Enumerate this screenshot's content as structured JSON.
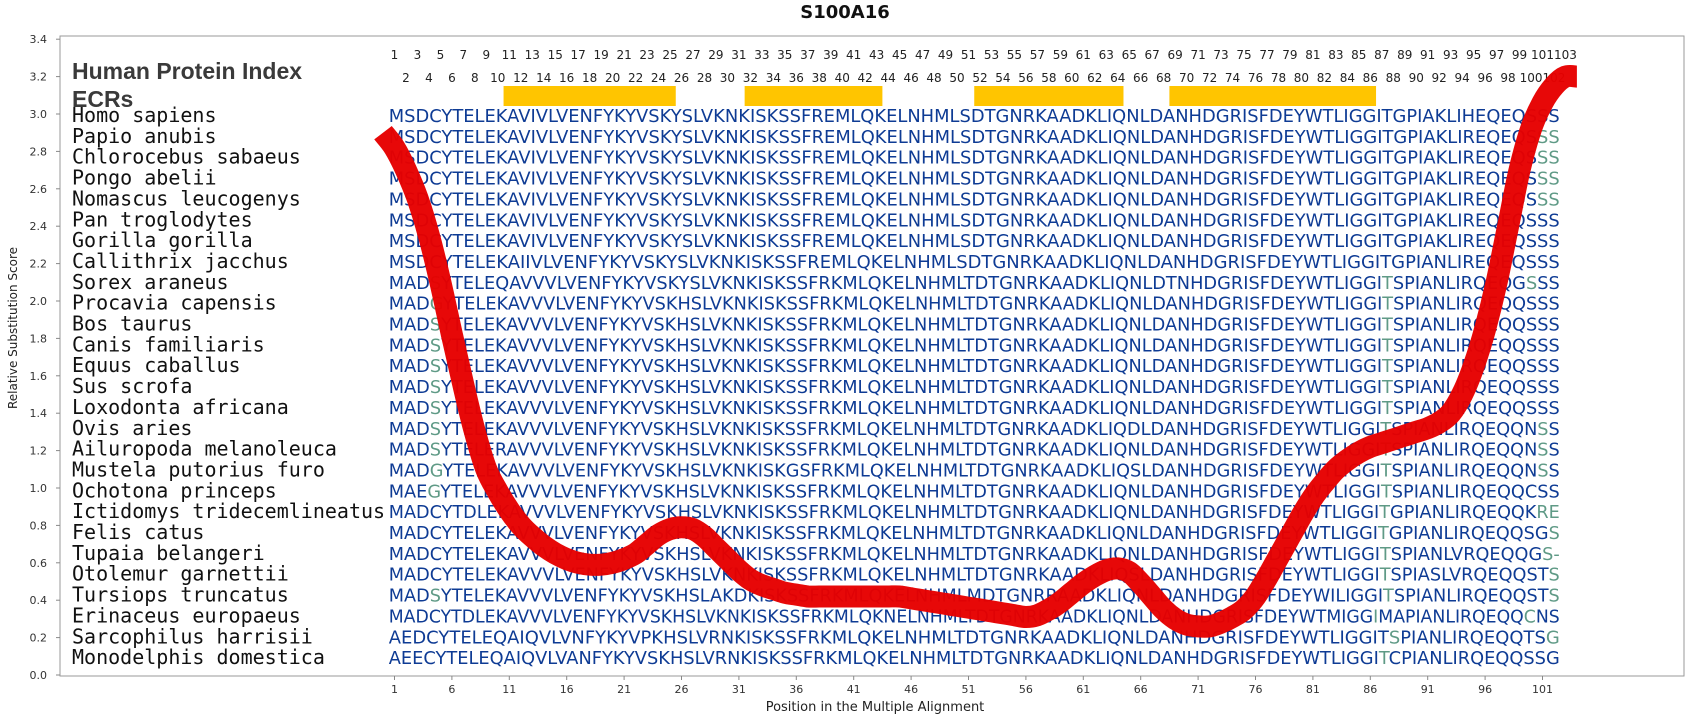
{
  "title": "S100A16",
  "header_label": "Human Protein Index",
  "ecr_label": "ECRs",
  "colors": {
    "conserved": "#0e3b94",
    "variant": "#5f9a86",
    "ecr_bar": "#ffc500",
    "curve": "#e60000",
    "frame": "#9a9a9a"
  },
  "chart_data": {
    "type": "line",
    "title": "S100A16",
    "xlabel": "Position in the Multiple Alignment",
    "ylabel": "Relative Substitution Score",
    "ylim": [
      0.0,
      3.4
    ],
    "yticks": [
      "0.0",
      "0.2",
      "0.4",
      "0.6",
      "0.8",
      "1.0",
      "1.2",
      "1.4",
      "1.6",
      "1.8",
      "2.0",
      "2.2",
      "2.4",
      "2.6",
      "2.8",
      "3.0",
      "3.2",
      "3.4"
    ],
    "xticks": [
      "1",
      "6",
      "11",
      "16",
      "21",
      "26",
      "31",
      "36",
      "41",
      "46",
      "51",
      "56",
      "61",
      "66",
      "71",
      "76",
      "81",
      "86",
      "91",
      "96",
      "101"
    ],
    "index_odd": [
      "1",
      "3",
      "5",
      "7",
      "9",
      "11",
      "13",
      "15",
      "17",
      "19",
      "21",
      "23",
      "25",
      "27",
      "29",
      "31",
      "33",
      "35",
      "37",
      "39",
      "41",
      "43",
      "45",
      "47",
      "49",
      "51",
      "53",
      "55",
      "57",
      "59",
      "61",
      "63",
      "65",
      "67",
      "69",
      "71",
      "73",
      "75",
      "77",
      "79",
      "81",
      "83",
      "85",
      "87",
      "89",
      "91",
      "93",
      "95",
      "97",
      "99",
      "101",
      "103"
    ],
    "index_even": [
      "2",
      "4",
      "6",
      "8",
      "10",
      "12",
      "14",
      "16",
      "18",
      "20",
      "22",
      "24",
      "26",
      "28",
      "30",
      "32",
      "34",
      "36",
      "38",
      "40",
      "42",
      "44",
      "46",
      "48",
      "50",
      "52",
      "54",
      "56",
      "58",
      "60",
      "62",
      "64",
      "66",
      "68",
      "70",
      "72",
      "74",
      "76",
      "78",
      "80",
      "82",
      "84",
      "86",
      "88",
      "90",
      "92",
      "94",
      "96",
      "98",
      "100",
      "102"
    ],
    "ecrs": [
      [
        11,
        25
      ],
      [
        32,
        43
      ],
      [
        52,
        64
      ],
      [
        69,
        86
      ]
    ],
    "curve": [
      {
        "x": 0,
        "y": 2.9
      },
      {
        "x": 1,
        "y": 2.82
      },
      {
        "x": 2,
        "y": 2.7
      },
      {
        "x": 3,
        "y": 2.55
      },
      {
        "x": 4,
        "y": 2.35
      },
      {
        "x": 5,
        "y": 2.1
      },
      {
        "x": 6,
        "y": 1.82
      },
      {
        "x": 7,
        "y": 1.55
      },
      {
        "x": 8,
        "y": 1.3
      },
      {
        "x": 9,
        "y": 1.1
      },
      {
        "x": 10,
        "y": 0.98
      },
      {
        "x": 11,
        "y": 0.88
      },
      {
        "x": 12,
        "y": 0.8
      },
      {
        "x": 13,
        "y": 0.74
      },
      {
        "x": 14,
        "y": 0.69
      },
      {
        "x": 15,
        "y": 0.65
      },
      {
        "x": 16,
        "y": 0.62
      },
      {
        "x": 17,
        "y": 0.6
      },
      {
        "x": 18,
        "y": 0.59
      },
      {
        "x": 19,
        "y": 0.59
      },
      {
        "x": 20,
        "y": 0.6
      },
      {
        "x": 21,
        "y": 0.62
      },
      {
        "x": 22,
        "y": 0.65
      },
      {
        "x": 23,
        "y": 0.7
      },
      {
        "x": 24,
        "y": 0.75
      },
      {
        "x": 25,
        "y": 0.78
      },
      {
        "x": 26,
        "y": 0.79
      },
      {
        "x": 27,
        "y": 0.78
      },
      {
        "x": 28,
        "y": 0.74
      },
      {
        "x": 29,
        "y": 0.68
      },
      {
        "x": 30,
        "y": 0.62
      },
      {
        "x": 31,
        "y": 0.56
      },
      {
        "x": 32,
        "y": 0.51
      },
      {
        "x": 33,
        "y": 0.48
      },
      {
        "x": 34,
        "y": 0.46
      },
      {
        "x": 35,
        "y": 0.44
      },
      {
        "x": 36,
        "y": 0.43
      },
      {
        "x": 37,
        "y": 0.42
      },
      {
        "x": 38,
        "y": 0.42
      },
      {
        "x": 39,
        "y": 0.42
      },
      {
        "x": 40,
        "y": 0.42
      },
      {
        "x": 41,
        "y": 0.42
      },
      {
        "x": 42,
        "y": 0.42
      },
      {
        "x": 43,
        "y": 0.42
      },
      {
        "x": 44,
        "y": 0.42
      },
      {
        "x": 45,
        "y": 0.42
      },
      {
        "x": 46,
        "y": 0.41
      },
      {
        "x": 47,
        "y": 0.4
      },
      {
        "x": 48,
        "y": 0.39
      },
      {
        "x": 49,
        "y": 0.38
      },
      {
        "x": 50,
        "y": 0.37
      },
      {
        "x": 51,
        "y": 0.36
      },
      {
        "x": 52,
        "y": 0.35
      },
      {
        "x": 53,
        "y": 0.34
      },
      {
        "x": 54,
        "y": 0.33
      },
      {
        "x": 55,
        "y": 0.32
      },
      {
        "x": 56,
        "y": 0.31
      },
      {
        "x": 57,
        "y": 0.32
      },
      {
        "x": 58,
        "y": 0.35
      },
      {
        "x": 59,
        "y": 0.39
      },
      {
        "x": 60,
        "y": 0.44
      },
      {
        "x": 61,
        "y": 0.49
      },
      {
        "x": 62,
        "y": 0.53
      },
      {
        "x": 63,
        "y": 0.56
      },
      {
        "x": 64,
        "y": 0.57
      },
      {
        "x": 65,
        "y": 0.55
      },
      {
        "x": 66,
        "y": 0.49
      },
      {
        "x": 67,
        "y": 0.42
      },
      {
        "x": 68,
        "y": 0.35
      },
      {
        "x": 69,
        "y": 0.3
      },
      {
        "x": 70,
        "y": 0.27
      },
      {
        "x": 71,
        "y": 0.26
      },
      {
        "x": 72,
        "y": 0.26
      },
      {
        "x": 73,
        "y": 0.28
      },
      {
        "x": 74,
        "y": 0.31
      },
      {
        "x": 75,
        "y": 0.35
      },
      {
        "x": 76,
        "y": 0.42
      },
      {
        "x": 77,
        "y": 0.52
      },
      {
        "x": 78,
        "y": 0.63
      },
      {
        "x": 79,
        "y": 0.74
      },
      {
        "x": 80,
        "y": 0.85
      },
      {
        "x": 81,
        "y": 0.95
      },
      {
        "x": 82,
        "y": 1.03
      },
      {
        "x": 83,
        "y": 1.1
      },
      {
        "x": 84,
        "y": 1.15
      },
      {
        "x": 85,
        "y": 1.19
      },
      {
        "x": 86,
        "y": 1.22
      },
      {
        "x": 87,
        "y": 1.24
      },
      {
        "x": 88,
        "y": 1.26
      },
      {
        "x": 89,
        "y": 1.28
      },
      {
        "x": 90,
        "y": 1.3
      },
      {
        "x": 91,
        "y": 1.32
      },
      {
        "x": 92,
        "y": 1.35
      },
      {
        "x": 93,
        "y": 1.4
      },
      {
        "x": 94,
        "y": 1.5
      },
      {
        "x": 95,
        "y": 1.65
      },
      {
        "x": 96,
        "y": 1.85
      },
      {
        "x": 97,
        "y": 2.1
      },
      {
        "x": 98,
        "y": 2.4
      },
      {
        "x": 99,
        "y": 2.7
      },
      {
        "x": 100,
        "y": 2.92
      },
      {
        "x": 101,
        "y": 3.06
      },
      {
        "x": 102,
        "y": 3.15
      },
      {
        "x": 103,
        "y": 3.2
      },
      {
        "x": 104,
        "y": 3.2
      }
    ],
    "species": [
      {
        "name": "Homo sapiens",
        "seq": "MSDCYTELEKAVIVLVENFYKYVSKYSLVKNKISKSSFREMLQKELNHMLSDTGNRKAADKLIQNLDANHDGRISFDEYWTLIGGITGPIAKLIHEQEQSSS",
        "var": []
      },
      {
        "name": "Papio anubis",
        "seq": "MSDCYTELEKAVIVLVENFYKYVSKYSLVKNKISKSSFREMLQKELNHMLSDTGNRKAADKLIQNLDANHDGRISFDEYWTLIGGITGPIAKLIREQEQSSS",
        "var": [
          100,
          101,
          102
        ]
      },
      {
        "name": "Chlorocebus sabaeus",
        "seq": "MSDCYTELEKAVIVLVENFYKYVSKYSLVKNKISKSSFREMLQKELNHMLSDTGNRKAADKLIQNLDANHDGRISFDEYWTLIGGITGPIAKLIREQEQSSS",
        "var": [
          100,
          101,
          102
        ]
      },
      {
        "name": "Pongo abelii",
        "seq": "MSDCYTELEKAVIVLVENFYKYVSKYSLVKNKISKSSFREMLQKELNHMLSDTGNRKAADKLIQNLDANHDGRISFDEYWTLIGGITGPIAKLIREQEQSSS",
        "var": [
          100,
          101,
          102
        ]
      },
      {
        "name": "Nomascus leucogenys",
        "seq": "MSDCYTELEKAVIVLVENFYKYVSKYSLVKNKISKSSFREMLQKELNHMLSDTGNRKAADKLIQNLDANHDGRISFDEYWTLIGGITGPIAKLIREQEQSSS",
        "var": [
          100,
          101,
          102
        ]
      },
      {
        "name": "Pan troglodytes",
        "seq": "MSDCYTELEKAVIVLVENFYKYVSKYSLVKNKISKSSFREMLQKELNHMLSDTGNRKAADKLIQNLDANHDGRISFDEYWTLIGGITGPIAKLIREQEQSSS",
        "var": []
      },
      {
        "name": "Gorilla gorilla",
        "seq": "MSDCYTELEKAVIVLVENFYKYVSKYSLVKNKISKSSFREMLQKELNHMLSDTGNRKAADKLIQNLDANHDGRISFDEYWTLIGGITGPIAKLIREQEQSSS",
        "var": []
      },
      {
        "name": "Callithrix jacchus",
        "seq": "MSDCYTELEKAIIVLVENFYKYVSKYSLVKNKISKSSFREMLQKELNHMLSDTGNRKAADKLIQNLDANHDGRISFDEYWTLIGGITGPIANLIREQEQSSS",
        "var": []
      },
      {
        "name": "Sorex araneus",
        "seq": "MADSYTELEQAVVVLVENFYKYVSKYSLVKNKISKSSFRKMLQKELNHMLTDTGNRKAADKLIQNLDTNHDGRISFDEYWTLIGGITSPIANLIRQEQGSSS",
        "var": [
          3,
          86,
          99
        ]
      },
      {
        "name": "Procavia capensis",
        "seq": "MADGYTELEKAVVVLVENFYKYVSKHSLVKNKISKSSFRKMLQKELNHMLTDTGNRKAADKLIQNLDANHDGRISFDEYWTLIGGITSPIANLIRQEQQSSS",
        "var": [
          3,
          86
        ]
      },
      {
        "name": "Bos taurus",
        "seq": "MADSYTELEKAVVVLVENFYKYVSKHSLVKNKISKSSFRKMLQKELNHMLTDTGNRKAADKLIQNLDANHDGRISFDEYWTLIGGITSPIANLIRQEQQSSS",
        "var": [
          3,
          86
        ]
      },
      {
        "name": "Canis familiaris",
        "seq": "MADSYTELEKAVVVLVENFYKYVSKHSLVKNKISKSSFRKMLQKELNHMLTDTGNRKAADKLIQNLDANHDGRISFDEYWTLIGGITSPIANLIRQEQQSSS",
        "var": [
          3,
          86
        ]
      },
      {
        "name": "Equus caballus",
        "seq": "MADSYTELEKAVVVLVENFYKYVSKHSLVKNKISKSSFRKMLQKELNHMLTDTGNRKAADKLIQNLDANHDGRISFDEYWTLIGGITSPIANLIRQEQQSSS",
        "var": [
          3,
          86
        ]
      },
      {
        "name": "Sus scrofa",
        "seq": "MADSYTELEKAVVVLVENFYKYVSKHSLVKNKISKSSFRKMLQKELNHMLTDTGNRKAADKLIQNLDANHDGRISFDEYWTLIGGITSPIANLIRQEQQSSS",
        "var": [
          3,
          86
        ]
      },
      {
        "name": "Loxodonta africana",
        "seq": "MADSYTELEKAVVVLVENFYKYVSKHSLVKNKISKSSFRKMLQKELNHMLTDTGNRKAADKLIQNLDANHDGRISFDEYWTLIGGITSPIANLIRQEQQSSS",
        "var": [
          3,
          86
        ]
      },
      {
        "name": "Ovis aries",
        "seq": "MADSYTELEKAVVVLVENFYKYVSKHSLVKNKISKSSFRKMLQKELNHMLTDTGNRKAADKLIQDLDANHDGRISFDEYWTLIGGITSPIANLIRQEQQNSS",
        "var": [
          3,
          86,
          100
        ]
      },
      {
        "name": "Ailuropoda melanoleuca",
        "seq": "MADSYTELERAVVVLVENFYKYVSKHSLVKNKISKSSFRKMLQKELNHMLTDTGNRKAADKLIQNLDANHDGRISFDEYWTLIGGITSPIANLIRQEQQNSS",
        "var": [
          3,
          86,
          100
        ]
      },
      {
        "name": "Mustela putorius furo",
        "seq": "MADGYTELEKAVVVLVENFYKYVSKHSLVKNKISKGSFRKMLQKELNHMLTDTGNRKAADKLIQSLDANHDGRISFDEYWTLIGGITSPIANLIRQEQQNSS",
        "var": [
          3,
          86,
          100
        ]
      },
      {
        "name": "Ochotona princeps",
        "seq": "MAEGYTELEKAVVVLVENFYKYVSKHSLVKNKISKSSFRKMLQKELNHMLTDTGNRKAADKLIQNLDANHDGRISFDEYWTLIGGITSPIANLIRQEQQCSS",
        "var": [
          3,
          86
        ]
      },
      {
        "name": "Ictidomys tridecemlineatus",
        "seq": "MADCYTDLEKAVVVLVENFYKYVSKHSLVKNKISKSSFRKMLQKELNHMLTDTGNRKAADKLIQNLDANHDGRISFDEYWTLIGGITGPIANLIRQEQQKRE",
        "var": [
          86,
          100,
          101,
          102
        ]
      },
      {
        "name": "Felis catus",
        "seq": "MADCYTELEKAVVVLVENFYKYVSKHSLVKNKISKSSFRKMLQKELNHMLTDTGNRKAADKLIQNLDANHDGRISFDEYWTLIGGITGPIANLIRQEQQSGS",
        "var": [
          86,
          101
        ]
      },
      {
        "name": "Tupaia belangeri",
        "seq": "MADCYTELEKAVVVLVENFYKYVSKHSLVKNKISKSSFRKMLQKELNHMLTDTGNRKAADKLIQNLDANHDGRISFDEYWTLIGGITSPIANLVRQEQQGS-",
        "var": [
          86,
          100,
          101,
          102
        ]
      },
      {
        "name": "Otolemur garnettii",
        "seq": "MADCYTELEKAVVVLVENFYKYVSKHSLVKNKISKSSFRKMLQKELNHMLTDTGNRKAADKLIQSLDANHDGRISFDEYWTLIGGITSPIASLVRQEQQSTS",
        "var": [
          86,
          101
        ]
      },
      {
        "name": "Tursiops truncatus",
        "seq": "MADSYTELEKAVVVLVENFYKYVSKHSLAKDKISKSSFRKMLQKELNHMLMDTGNRRAADKLIQNLDANHDGRISFDEYWILIGGITSPIANLIRQEQQSTS",
        "var": [
          3,
          86,
          101
        ]
      },
      {
        "name": "Erinaceus europaeus",
        "seq": "MADCYTDLEKAVVVLVENFYKYVSKHSLVKNKISKSSFRKMLQKNELNHMLTDTGNRKAADKLIQNLDANHDGRISFDEYWTMIGGIMAPIANLIRQEQQCNS",
        "var": [
          86,
          100
        ]
      },
      {
        "name": "Sarcophilus harrisii",
        "seq": "AEDCYTELEQAIQVLVNFYKYVPKHSLVRNKISKSSFRKMLQKELNHMLTDTGNRKAADKLIQNLDANHDGRISFDEYWTLIGGITSPIANLIRQEQQTSG",
        "var": [
          86,
          100
        ]
      },
      {
        "name": "Monodelphis domestica",
        "seq": "AEECYTELEQAIQVLVANFYKYVSKHSLVRNKISKSSFRKMLQKELNHMLTDTGNRKAADKLIQNLDANHDGRISFDEYWTLIGGITCPIANLIRQEQQSSG",
        "var": [
          86
        ]
      }
    ]
  }
}
